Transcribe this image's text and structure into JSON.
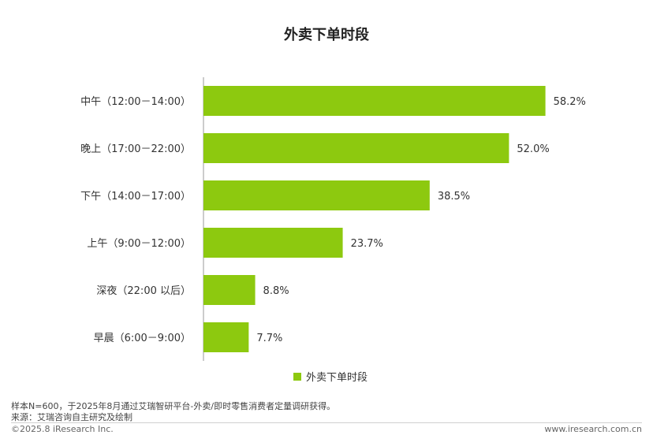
{
  "chart_data": {
    "type": "bar",
    "orientation": "horizontal",
    "title": "外卖下单时段",
    "categories": [
      "中午（12:00－14:00）",
      "晚上（17:00－22:00）",
      "下午（14:00－17:00）",
      "上午（9:00－12:00）",
      "深夜（22:00 以后）",
      "早晨（6:00－9:00）"
    ],
    "series": [
      {
        "name": "外卖下单时段",
        "values": [
          58.2,
          52.0,
          38.5,
          23.7,
          8.8,
          7.7
        ]
      }
    ],
    "value_labels": [
      "58.2%",
      "52.0%",
      "38.5%",
      "23.7%",
      "8.8%",
      "7.7%"
    ],
    "xlim": [
      0,
      70
    ],
    "grid": false,
    "legend_position": "bottom",
    "bar_color": "#8DC90F"
  },
  "footer": {
    "note": "样本N=600，于2025年8月通过艾瑞智研平台-外卖/即时零售消费者定量调研获得。",
    "source": "来源：艾瑞咨询自主研究及绘制",
    "copyright": "©2025.8 iResearch Inc.",
    "site": "www.iresearch.com.cn"
  }
}
